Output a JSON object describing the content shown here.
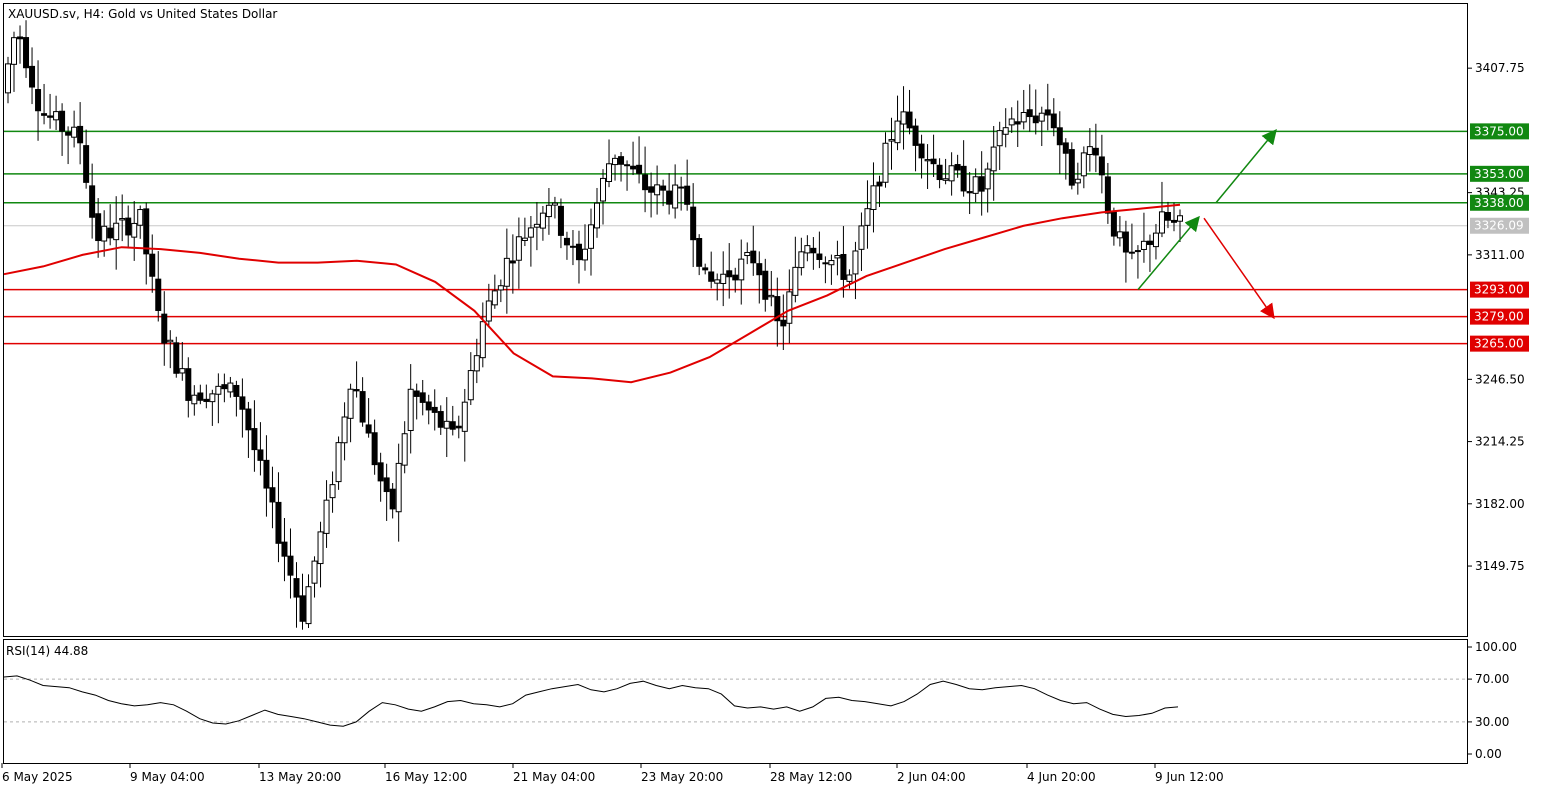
{
  "header": {
    "symbol_title": "XAUUSD.sv, H4:  Gold vs United States Dollar"
  },
  "rsi_panel": {
    "label": "RSI(14) 44.88"
  },
  "chart_data": [
    {
      "type": "candlestick",
      "title": "XAUUSD.sv, H4:  Gold vs United States Dollar",
      "ylim": [
        3113.5,
        3441
      ],
      "y_ticks": [
        "3407.75",
        "3343.25",
        "3311.00",
        "3246.50",
        "3214.25",
        "3182.00",
        "3149.75"
      ],
      "x_ticks": [
        "6 May 2025",
        "9 May 04:00",
        "13 May 20:00",
        "16 May 12:00",
        "21 May 04:00",
        "23 May 20:00",
        "28 May 12:00",
        "2 Jun 04:00",
        "4 Jun 20:00",
        "9 Jun 12:00"
      ],
      "current_price": "3326.09",
      "colors": {
        "bull": "#ffffff",
        "bear": "#000000",
        "ma": "#e00000",
        "resistance": "#118811",
        "support": "#e00000",
        "price_badge": "#c0c0c0"
      },
      "levels": [
        {
          "value": 3375.0,
          "label": "3375.00",
          "kind": "resistance"
        },
        {
          "value": 3353.0,
          "label": "3353.00",
          "kind": "resistance"
        },
        {
          "value": 3338.0,
          "label": "3338.00",
          "kind": "resistance"
        },
        {
          "value": 3293.0,
          "label": "3293.00",
          "kind": "support"
        },
        {
          "value": 3279.0,
          "label": "3279.00",
          "kind": "support"
        },
        {
          "value": 3265.0,
          "label": "3265.00",
          "kind": "support"
        }
      ],
      "moving_average": {
        "y": [
          3301,
          3305,
          3311,
          3315,
          3314,
          3312,
          3309,
          3307,
          3307,
          3308,
          3306,
          3297,
          3282,
          3260,
          3248,
          3247,
          3245,
          3250,
          3258,
          3270,
          3282,
          3290,
          3300,
          3307,
          3314,
          3320,
          3326,
          3330,
          3333,
          3335,
          3337
        ]
      },
      "scenario_arrows": {
        "up_path_y": [
          3293,
          3330,
          3338,
          3375
        ],
        "down_path_y": [
          3330,
          3279
        ]
      },
      "candle_count": 196
    },
    {
      "type": "line",
      "title": "RSI(14) 44.88",
      "ylim": [
        0,
        100
      ],
      "y_ticks": [
        "100.00",
        "70.00",
        "30.00",
        "0.00"
      ],
      "reference_levels": [
        70,
        30
      ],
      "y": [
        72,
        73,
        69,
        64,
        63,
        62,
        58,
        55,
        50,
        47,
        45,
        46,
        48,
        46,
        40,
        33,
        29,
        28,
        31,
        36,
        41,
        37,
        35,
        33,
        30,
        27,
        26,
        30,
        40,
        48,
        46,
        42,
        40,
        44,
        49,
        50,
        47,
        46,
        44,
        47,
        55,
        58,
        61,
        63,
        65,
        60,
        58,
        61,
        66,
        68,
        64,
        61,
        64,
        62,
        61,
        56,
        45,
        43,
        44,
        42,
        44,
        40,
        44,
        52,
        53,
        50,
        49,
        47,
        45,
        49,
        56,
        65,
        68,
        65,
        61,
        60,
        62,
        63,
        64,
        61,
        55,
        50,
        47,
        48,
        42,
        37,
        35,
        36,
        38,
        43,
        44
      ]
    }
  ]
}
